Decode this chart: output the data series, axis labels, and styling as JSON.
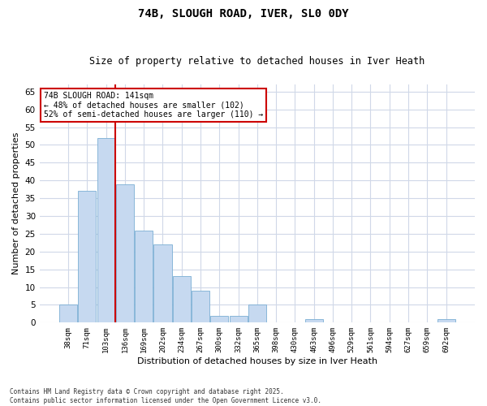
{
  "title1": "74B, SLOUGH ROAD, IVER, SL0 0DY",
  "title2": "Size of property relative to detached houses in Iver Heath",
  "xlabel": "Distribution of detached houses by size in Iver Heath",
  "ylabel": "Number of detached properties",
  "categories": [
    "38sqm",
    "71sqm",
    "103sqm",
    "136sqm",
    "169sqm",
    "202sqm",
    "234sqm",
    "267sqm",
    "300sqm",
    "332sqm",
    "365sqm",
    "398sqm",
    "430sqm",
    "463sqm",
    "496sqm",
    "529sqm",
    "561sqm",
    "594sqm",
    "627sqm",
    "659sqm",
    "692sqm"
  ],
  "values": [
    5,
    37,
    52,
    39,
    26,
    22,
    13,
    9,
    2,
    2,
    5,
    0,
    0,
    1,
    0,
    0,
    0,
    0,
    0,
    0,
    1
  ],
  "bar_color": "#c6d9f0",
  "bar_edge_color": "#7bafd4",
  "vline_color": "#cc0000",
  "annotation_text": "74B SLOUGH ROAD: 141sqm\n← 48% of detached houses are smaller (102)\n52% of semi-detached houses are larger (110) →",
  "annotation_box_color": "#ffffff",
  "annotation_box_edge": "#cc0000",
  "ylim": [
    0,
    67
  ],
  "yticks": [
    0,
    5,
    10,
    15,
    20,
    25,
    30,
    35,
    40,
    45,
    50,
    55,
    60,
    65
  ],
  "background_color": "#ffffff",
  "grid_color": "#d0d8e8",
  "footer1": "Contains HM Land Registry data © Crown copyright and database right 2025.",
  "footer2": "Contains public sector information licensed under the Open Government Licence v3.0."
}
